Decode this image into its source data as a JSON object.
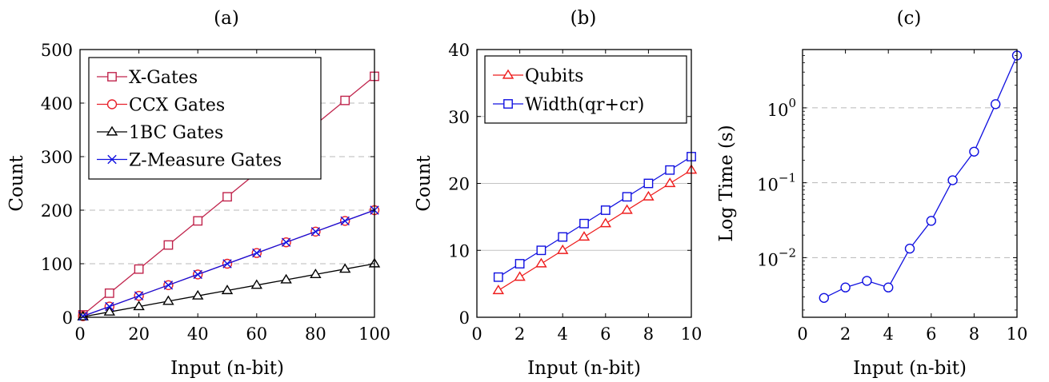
{
  "chart_data": [
    {
      "type": "line",
      "title": "(a)",
      "xlabel": "Input (n-bit)",
      "ylabel": "Count",
      "xlim": [
        0,
        100
      ],
      "ylim": [
        0,
        500
      ],
      "xticks": [
        0,
        20,
        40,
        60,
        80,
        100
      ],
      "xtick_labels": [
        "0",
        "20",
        "40",
        "60",
        "80",
        "100"
      ],
      "yticks": [
        0,
        100,
        200,
        300,
        400,
        500
      ],
      "ytick_labels": [
        "0",
        "100",
        "200",
        "300",
        "400",
        "500"
      ],
      "grid": "horizontal dashed",
      "legend_position": "top-left",
      "series": [
        {
          "name": "X-Gates",
          "color": "#c0244c",
          "marker": "square",
          "x": [
            1,
            10,
            20,
            30,
            40,
            50,
            60,
            70,
            80,
            90,
            100
          ],
          "y": [
            4.5,
            45,
            90,
            135,
            180,
            225,
            270,
            315,
            360,
            405,
            450
          ]
        },
        {
          "name": "CCX Gates",
          "color": "#e8202a",
          "marker": "circle",
          "x": [
            1,
            10,
            20,
            30,
            40,
            50,
            60,
            70,
            80,
            90,
            100
          ],
          "y": [
            2,
            20,
            40,
            60,
            80,
            100,
            120,
            140,
            160,
            180,
            200
          ]
        },
        {
          "name": "1BC Gates",
          "color": "#000000",
          "marker": "triangle",
          "x": [
            1,
            10,
            20,
            30,
            40,
            50,
            60,
            70,
            80,
            90,
            100
          ],
          "y": [
            1,
            10,
            20,
            30,
            40,
            50,
            60,
            70,
            80,
            90,
            100
          ]
        },
        {
          "name": "Z-Measure Gates",
          "color": "#1010e0",
          "marker": "x",
          "x": [
            1,
            10,
            20,
            30,
            40,
            50,
            60,
            70,
            80,
            90,
            100
          ],
          "y": [
            2,
            20,
            40,
            60,
            80,
            100,
            120,
            140,
            160,
            180,
            200
          ]
        }
      ]
    },
    {
      "type": "line",
      "title": "(b)",
      "xlabel": "Input (n-bit)",
      "ylabel": "Count",
      "xlim": [
        0,
        10
      ],
      "ylim": [
        0,
        40
      ],
      "xticks": [
        0,
        2,
        4,
        6,
        8,
        10
      ],
      "xtick_labels": [
        "0",
        "2",
        "4",
        "6",
        "8",
        "10"
      ],
      "yticks": [
        0,
        10,
        20,
        30,
        40
      ],
      "ytick_labels": [
        "0",
        "10",
        "20",
        "30",
        "40"
      ],
      "grid": "horizontal solid",
      "legend_position": "top-left",
      "series": [
        {
          "name": "Qubits",
          "color": "#ee1c1c",
          "marker": "triangle",
          "x": [
            1,
            2,
            3,
            4,
            5,
            6,
            7,
            8,
            9,
            10
          ],
          "y": [
            4,
            6,
            8,
            10,
            12,
            14,
            16,
            18,
            20,
            22
          ]
        },
        {
          "name": "Width(qr+cr)",
          "color": "#1010e0",
          "marker": "square",
          "x": [
            1,
            2,
            3,
            4,
            5,
            6,
            7,
            8,
            9,
            10
          ],
          "y": [
            6,
            8,
            10,
            12,
            14,
            16,
            18,
            20,
            22,
            24
          ]
        }
      ]
    },
    {
      "type": "line",
      "title": "(c)",
      "xlabel": "Input (n-bit)",
      "ylabel": "Log Time (s)",
      "yscale": "log",
      "xlim": [
        0,
        10
      ],
      "ylim": [
        0.0016,
        6
      ],
      "xticks": [
        0,
        2,
        4,
        6,
        8,
        10
      ],
      "xtick_labels": [
        "0",
        "2",
        "4",
        "6",
        "8",
        "10"
      ],
      "yticks": [
        0.01,
        0.1,
        1
      ],
      "ytick_labels": [
        {
          "base": "10",
          "exp": "−2"
        },
        {
          "base": "10",
          "exp": "−1"
        },
        {
          "base": "10",
          "exp": "0"
        }
      ],
      "grid": "horizontal dashed",
      "series": [
        {
          "color": "#1010e0",
          "marker": "circle",
          "x": [
            1,
            2,
            3,
            4,
            5,
            6,
            7,
            8,
            9,
            10
          ],
          "y": [
            0.0029,
            0.004,
            0.0049,
            0.004,
            0.0132,
            0.031,
            0.108,
            0.26,
            1.12,
            5.0
          ]
        }
      ]
    }
  ]
}
